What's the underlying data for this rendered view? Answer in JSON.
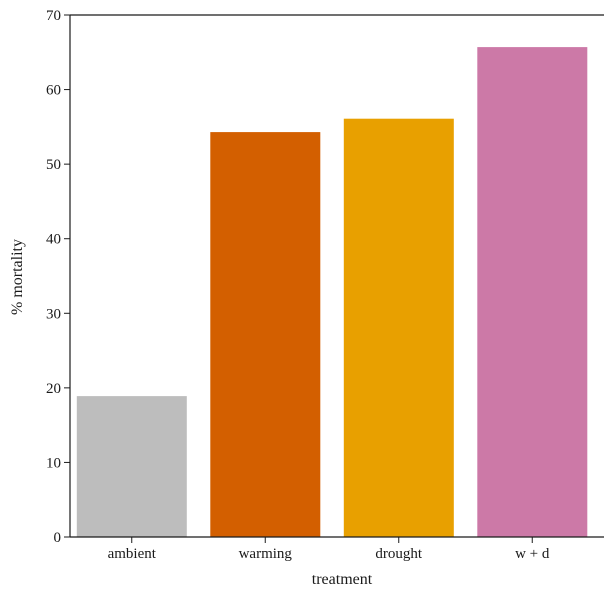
{
  "chart_data": {
    "type": "bar",
    "xlabel": "treatment",
    "ylabel": "% mortality",
    "categories": [
      "ambient",
      "warming",
      "drought",
      "w + d"
    ],
    "values": [
      18.9,
      54.3,
      56.1,
      65.7
    ],
    "colors": [
      "#bdbdbd",
      "#d35f00",
      "#e8a000",
      "#cc79a7"
    ],
    "ylim": [
      0,
      70
    ],
    "yticks": [
      0,
      10,
      20,
      30,
      40,
      50,
      60,
      70
    ],
    "grid": false,
    "legend": "none"
  }
}
